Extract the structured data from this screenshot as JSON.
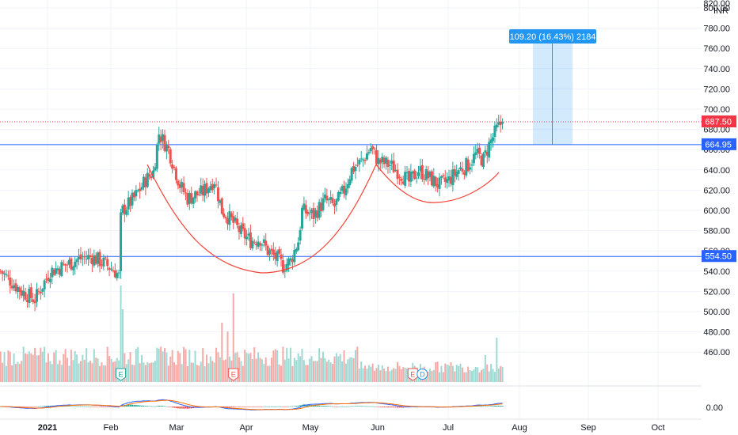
{
  "chart_data": {
    "type": "candlestick",
    "currency": "INR",
    "y_top_partial_label": "820.00",
    "y_ticks": [
      800,
      780,
      760,
      740,
      720,
      700,
      680,
      660,
      640,
      620,
      600,
      580,
      560,
      540,
      520,
      500,
      480,
      460
    ],
    "macd_zero_label": "0.00",
    "x_ticks": [
      "2021",
      "Feb",
      "Mar",
      "Apr",
      "May",
      "Jun",
      "Jul",
      "Aug",
      "Sep",
      "Oct"
    ],
    "last_price": 687.5,
    "horizontal_levels": [
      664.95,
      554.5
    ],
    "measure_label": "109.20 (16.43%) 2184",
    "measure_range": [
      664.95,
      774.15
    ],
    "event_badges": [
      {
        "label": "E",
        "day": 55
      },
      {
        "label": "E",
        "day": 114
      },
      {
        "label": "E",
        "day": 208
      },
      {
        "label": "D",
        "day": 213
      }
    ],
    "colors": {
      "up": "#26a69a",
      "down": "#ef5350",
      "level": "#2962ff",
      "price": "#f23645",
      "measure": "#2196f3",
      "arc": "#f44336"
    },
    "anchors": [
      [
        -8,
        540
      ],
      [
        3,
        520
      ],
      [
        10,
        512
      ],
      [
        18,
        540
      ],
      [
        25,
        545
      ],
      [
        33,
        552
      ],
      [
        40,
        554
      ],
      [
        46,
        548
      ],
      [
        52,
        540
      ],
      [
        54,
        535
      ],
      [
        56,
        600
      ],
      [
        62,
        612
      ],
      [
        68,
        630
      ],
      [
        72,
        638
      ],
      [
        75,
        676
      ],
      [
        80,
        660
      ],
      [
        86,
        625
      ],
      [
        90,
        612
      ],
      [
        98,
        618
      ],
      [
        104,
        630
      ],
      [
        108,
        600
      ],
      [
        113,
        590
      ],
      [
        118,
        578
      ],
      [
        123,
        570
      ],
      [
        128,
        572
      ],
      [
        132,
        560
      ],
      [
        137,
        552
      ],
      [
        140,
        545
      ],
      [
        144,
        550
      ],
      [
        148,
        570
      ],
      [
        150,
        600
      ],
      [
        156,
        595
      ],
      [
        162,
        610
      ],
      [
        167,
        604
      ],
      [
        172,
        620
      ],
      [
        176,
        640
      ],
      [
        182,
        650
      ],
      [
        186,
        662
      ],
      [
        190,
        648
      ],
      [
        196,
        645
      ],
      [
        202,
        636
      ],
      [
        206,
        628
      ],
      [
        211,
        640
      ],
      [
        216,
        633
      ],
      [
        222,
        625
      ],
      [
        227,
        630
      ],
      [
        232,
        640
      ],
      [
        237,
        645
      ],
      [
        241,
        655
      ],
      [
        245,
        650
      ],
      [
        248,
        665
      ],
      [
        252,
        680
      ],
      [
        255,
        687.5
      ]
    ]
  }
}
